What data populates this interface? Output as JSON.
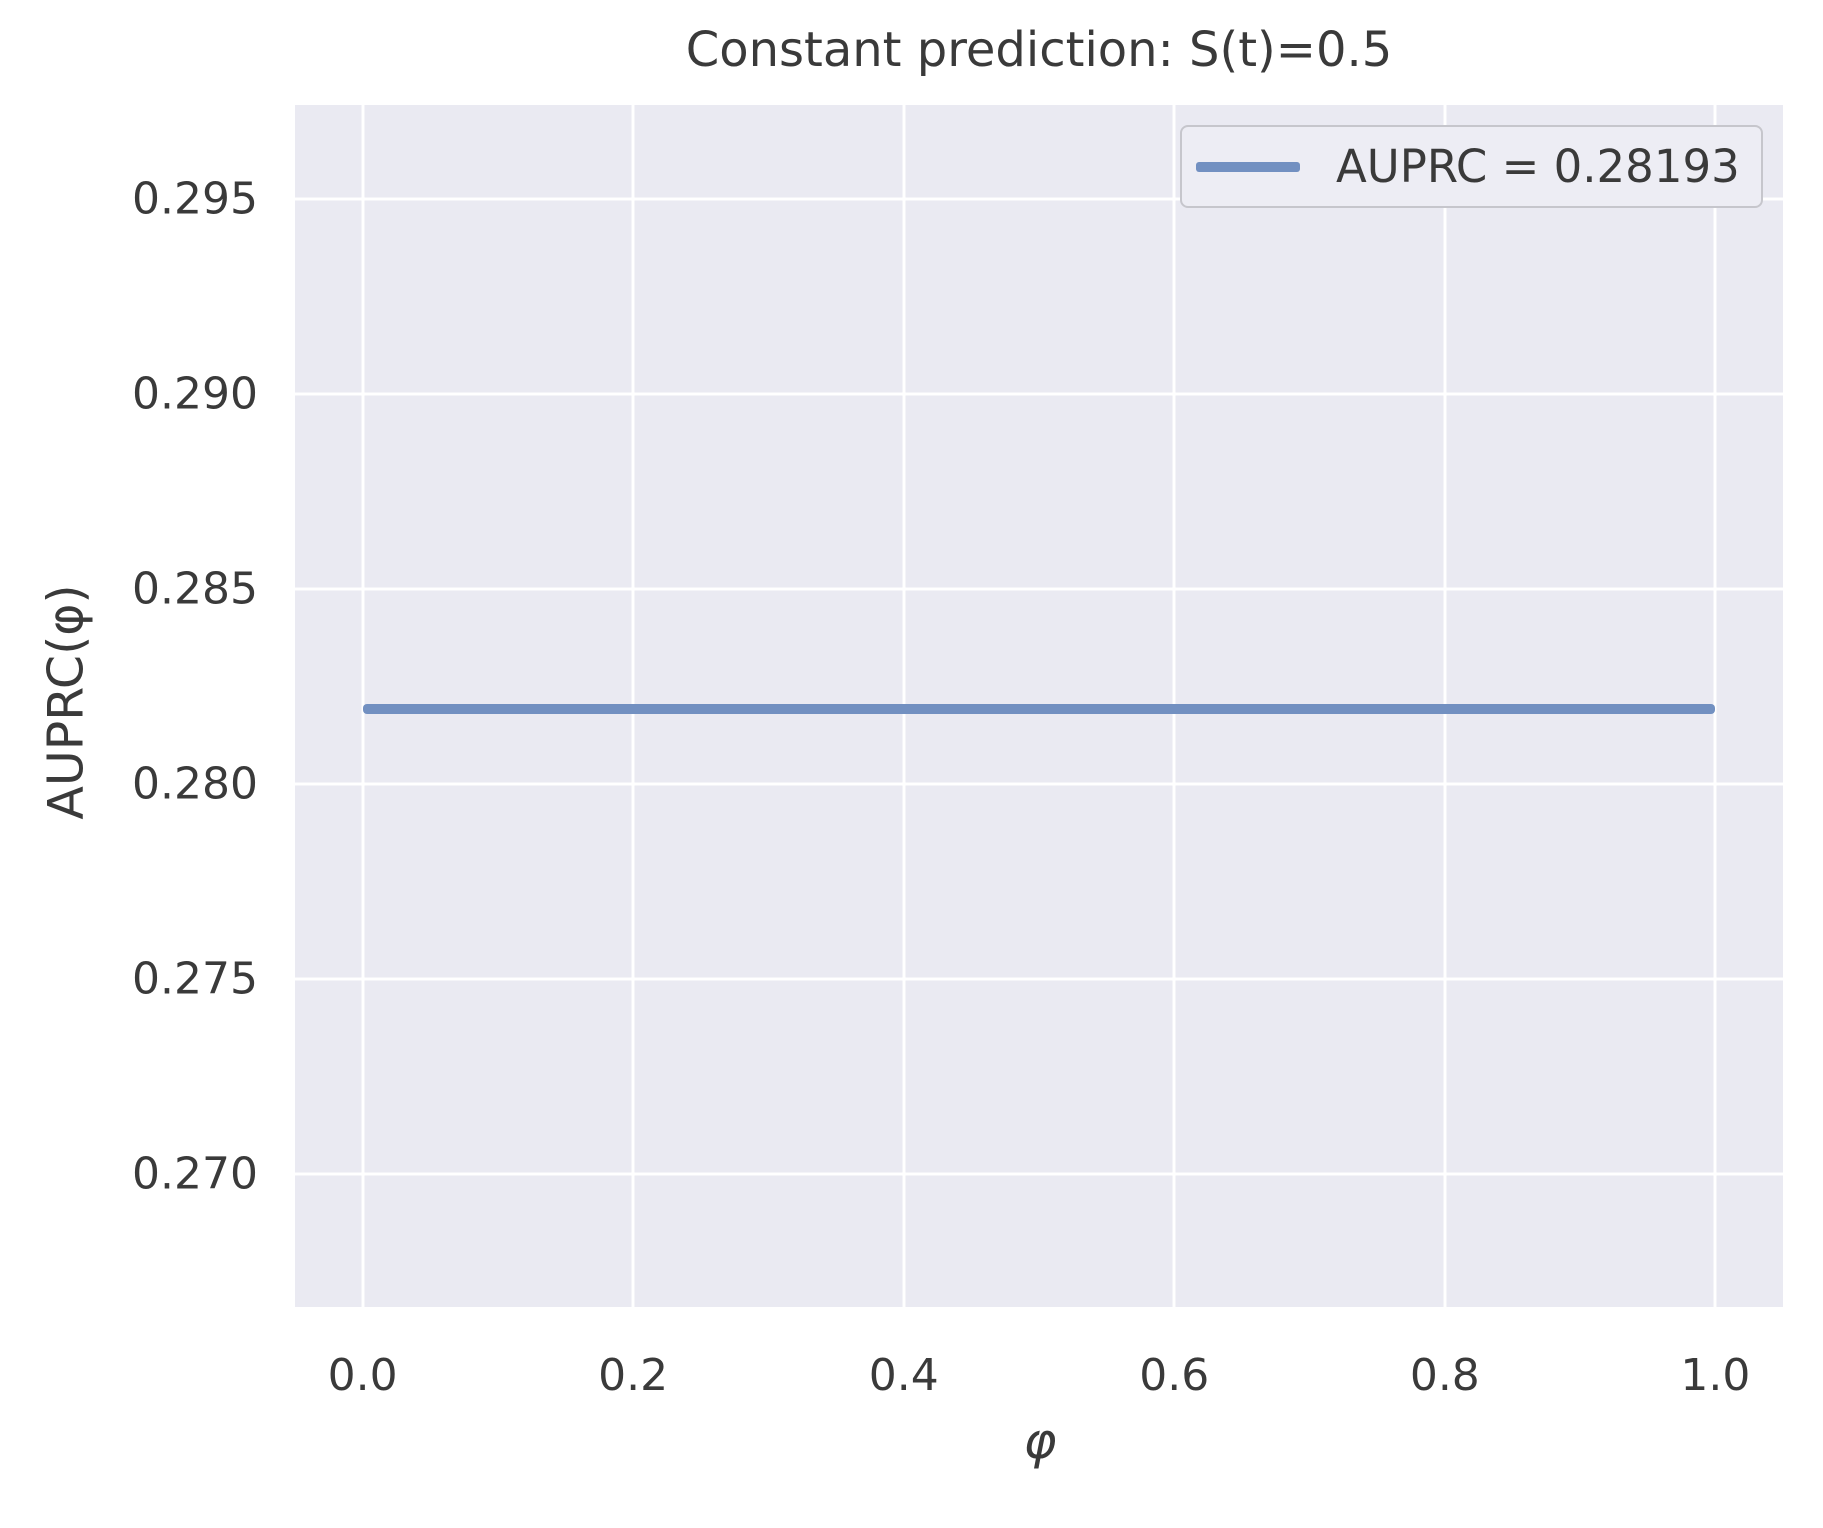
{
  "chart_data": {
    "type": "line",
    "title": "Constant prediction: S(t)=0.5",
    "xlabel": "φ",
    "ylabel": "AUPRC(φ)",
    "x": [
      0.0,
      1.0
    ],
    "series": [
      {
        "name": "AUPRC = 0.28193",
        "values": [
          0.28193,
          0.28193
        ]
      }
    ],
    "xlim": [
      -0.05,
      1.05
    ],
    "ylim": [
      0.2666,
      0.2974
    ],
    "xticks": [
      0.0,
      0.2,
      0.4,
      0.6,
      0.8,
      1.0
    ],
    "xtick_labels": [
      "0.0",
      "0.2",
      "0.4",
      "0.6",
      "0.8",
      "1.0"
    ],
    "yticks": [
      0.295,
      0.29,
      0.285,
      0.28,
      0.275,
      0.27
    ],
    "ytick_labels": [
      "0.295",
      "0.290",
      "0.285",
      "0.280",
      "0.275",
      "0.270"
    ],
    "grid": true,
    "legend": {
      "position": "upper right",
      "entries": [
        "AUPRC = 0.28193"
      ]
    },
    "colors": {
      "line": "#7290c1",
      "axes_background": "#eaeaf2",
      "gridline": "#ffffff",
      "text": "#3a3a3a",
      "legend_background": "#ededf4",
      "legend_border": "#c6c6cc"
    }
  }
}
